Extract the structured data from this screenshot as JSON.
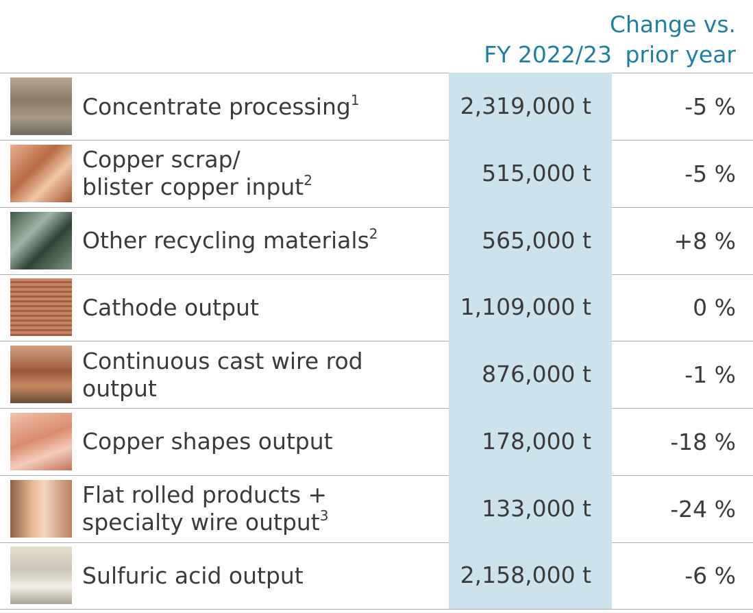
{
  "table": {
    "header": {
      "value": "FY 2022/23",
      "change": [
        "Change vs.",
        "prior year"
      ]
    },
    "rows": [
      {
        "label": [
          "Concentrate processing"
        ],
        "note": "1",
        "value": "2,319,000 t",
        "change": "-5 %"
      },
      {
        "label": [
          "Copper scrap/",
          "blister copper input"
        ],
        "note": "2",
        "value": "515,000 t",
        "change": "-5 %"
      },
      {
        "label": [
          "Other recycling materials"
        ],
        "note": "2",
        "value": "565,000 t",
        "change": "+8 %"
      },
      {
        "label": [
          "Cathode output"
        ],
        "value": "1,109,000 t",
        "change": "0 %"
      },
      {
        "label": [
          "Continuous cast wire rod",
          "output"
        ],
        "value": "876,000 t",
        "change": "-1 %"
      },
      {
        "label": [
          "Copper shapes output"
        ],
        "value": "178,000 t",
        "change": "-18 %"
      },
      {
        "label": [
          "Flat rolled products +",
          "specialty wire output"
        ],
        "note": "3",
        "value": "133,000 t",
        "change": "-24 %"
      },
      {
        "label": [
          "Sulfuric acid output"
        ],
        "value": "2,158,000 t",
        "change": "-6 %"
      }
    ]
  }
}
